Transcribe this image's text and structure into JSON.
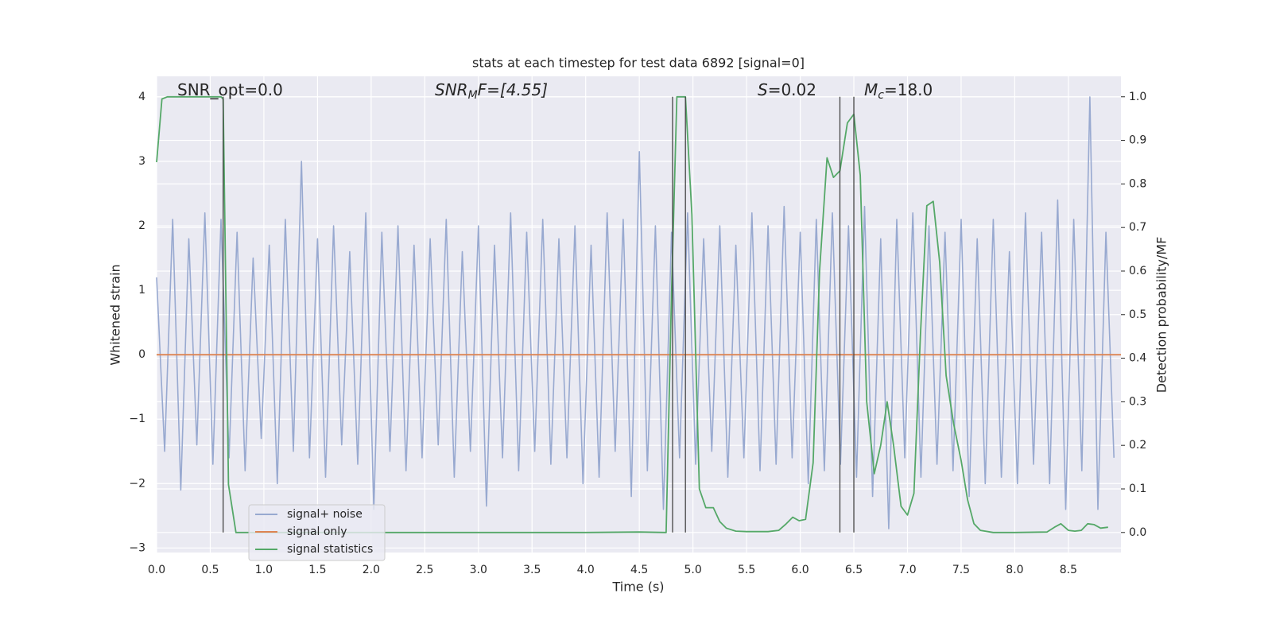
{
  "chart_data": {
    "type": "line",
    "title": "stats at each timestep for test data 6892 [signal=0]",
    "xlabel": "Time (s)",
    "ylabel": "Whitened strain",
    "y2label": "Detection probability/MF",
    "xlim": [
      0,
      8.99
    ],
    "ylim": [
      -3.07,
      4.32
    ],
    "y2lim": [
      -0.046,
      1.047
    ],
    "grid": true,
    "legend": "lower left",
    "xticks": [
      {
        "value": 0,
        "label": "0.0"
      },
      {
        "value": 0.5,
        "label": "0.5"
      },
      {
        "value": 1,
        "label": "1.0"
      },
      {
        "value": 1.5,
        "label": "1.5"
      },
      {
        "value": 2,
        "label": "2.0"
      },
      {
        "value": 2.5,
        "label": "2.5"
      },
      {
        "value": 3,
        "label": "3.0"
      },
      {
        "value": 3.5,
        "label": "3.5"
      },
      {
        "value": 4,
        "label": "4.0"
      },
      {
        "value": 4.5,
        "label": "4.5"
      },
      {
        "value": 5,
        "label": "5.0"
      },
      {
        "value": 5.5,
        "label": "5.5"
      },
      {
        "value": 6,
        "label": "6.0"
      },
      {
        "value": 6.5,
        "label": "6.5"
      },
      {
        "value": 7,
        "label": "7.0"
      },
      {
        "value": 7.5,
        "label": "7.5"
      },
      {
        "value": 8,
        "label": "8.0"
      },
      {
        "value": 8.5,
        "label": "8.5"
      }
    ],
    "yticks": [
      {
        "value": -3,
        "label": "−3"
      },
      {
        "value": -2,
        "label": "−2"
      },
      {
        "value": -1,
        "label": "−1"
      },
      0,
      1,
      2,
      3,
      4
    ],
    "y2ticks": [
      {
        "value": 0,
        "label": "0.0"
      },
      {
        "value": 0.1,
        "label": "0.1"
      },
      {
        "value": 0.2,
        "label": "0.2"
      },
      {
        "value": 0.3,
        "label": "0.3"
      },
      {
        "value": 0.4,
        "label": "0.4"
      },
      {
        "value": 0.5,
        "label": "0.5"
      },
      {
        "value": 0.6,
        "label": "0.6"
      },
      {
        "value": 0.7,
        "label": "0.7"
      },
      {
        "value": 0.8,
        "label": "0.8"
      },
      {
        "value": 0.9,
        "label": "0.9"
      },
      {
        "value": 1,
        "label": "1.0"
      }
    ],
    "annotations": [
      {
        "main": "SNR_opt=0.0"
      },
      {
        "main": "SNR",
        "sub": "M",
        "tail": "F=[4.55]"
      },
      {
        "main": "S",
        "tail": "=0.02"
      },
      {
        "main": "M",
        "sub": "c",
        "tail": "=18.0"
      }
    ],
    "vlines": [
      0.62,
      4.81,
      4.93,
      6.37,
      6.5
    ],
    "vlines_y2range": [
      0,
      1
    ],
    "vline_color": "#444444",
    "series": [
      {
        "name": "signal+ noise",
        "color": "#98a9d0",
        "x": [
          0,
          0.075,
          0.15,
          0.225,
          0.3,
          0.375,
          0.45,
          0.525,
          0.6,
          0.675,
          0.75,
          0.825,
          0.9,
          0.975,
          1.05,
          1.125,
          1.2,
          1.275,
          1.35,
          1.425,
          1.5,
          1.575,
          1.65,
          1.725,
          1.8,
          1.875,
          1.95,
          2.025,
          2.1,
          2.175,
          2.25,
          2.325,
          2.4,
          2.475,
          2.55,
          2.625,
          2.7,
          2.775,
          2.85,
          2.925,
          3.0,
          3.075,
          3.15,
          3.225,
          3.3,
          3.375,
          3.45,
          3.525,
          3.6,
          3.675,
          3.75,
          3.825,
          3.9,
          3.975,
          4.05,
          4.125,
          4.2,
          4.275,
          4.35,
          4.425,
          4.5,
          4.575,
          4.65,
          4.725,
          4.8,
          4.875,
          4.95,
          5.025,
          5.1,
          5.175,
          5.25,
          5.325,
          5.4,
          5.475,
          5.55,
          5.625,
          5.7,
          5.775,
          5.85,
          5.925,
          6.0,
          6.075,
          6.15,
          6.225,
          6.3,
          6.375,
          6.45,
          6.525,
          6.6,
          6.675,
          6.75,
          6.825,
          6.9,
          6.975,
          7.05,
          7.125,
          7.2,
          7.275,
          7.35,
          7.425,
          7.5,
          7.575,
          7.65,
          7.725,
          7.8,
          7.875,
          7.95,
          8.025,
          8.1,
          8.175,
          8.25,
          8.325,
          8.4,
          8.475,
          8.55,
          8.625,
          8.7,
          8.775,
          8.85,
          8.925
        ],
        "values": [
          1.2,
          -1.5,
          2.1,
          -2.1,
          1.8,
          -1.4,
          2.2,
          -1.7,
          2.1,
          -1.6,
          1.9,
          -1.8,
          1.5,
          -1.3,
          1.7,
          -2.0,
          2.1,
          -1.5,
          3.0,
          -1.6,
          1.8,
          -1.9,
          2.0,
          -1.4,
          1.6,
          -1.7,
          2.2,
          -2.4,
          1.9,
          -1.5,
          2.0,
          -1.8,
          1.7,
          -1.6,
          1.8,
          -1.4,
          2.1,
          -1.9,
          1.6,
          -1.5,
          2.0,
          -2.35,
          1.7,
          -1.6,
          2.2,
          -1.8,
          1.9,
          -1.5,
          2.1,
          -1.7,
          1.8,
          -1.6,
          2.0,
          -2.0,
          1.7,
          -1.9,
          2.2,
          -1.5,
          2.1,
          -2.2,
          3.15,
          -1.8,
          2.0,
          -2.4,
          1.9,
          -1.6,
          2.2,
          -1.7,
          1.8,
          -1.5,
          2.0,
          -1.9,
          1.7,
          -1.6,
          2.2,
          -1.8,
          2.0,
          -1.7,
          2.3,
          -1.6,
          1.9,
          -2.0,
          2.1,
          -1.8,
          2.2,
          -1.7,
          2.0,
          -1.9,
          2.3,
          -2.2,
          1.8,
          -2.7,
          2.1,
          -1.6,
          2.2,
          -1.9,
          2.0,
          -1.7,
          1.9,
          -1.8,
          2.1,
          -2.2,
          1.8,
          -2.0,
          2.1,
          -1.9,
          1.6,
          -2.0,
          2.2,
          -1.7,
          1.9,
          -2.0,
          2.4,
          -2.4,
          2.1,
          -1.8,
          4.0,
          -2.4,
          1.9,
          -1.6
        ]
      },
      {
        "name": "signal only",
        "color": "#dd8452",
        "x": [
          0,
          8.99
        ],
        "values": [
          0,
          0
        ]
      },
      {
        "name": "signal statistics",
        "color": "#55a868",
        "axis": "y2",
        "x": [
          0,
          0.05,
          0.1,
          0.2,
          0.3,
          0.4,
          0.5,
          0.6,
          0.62,
          0.67,
          0.74,
          1.0,
          2.0,
          3.0,
          4.0,
          4.5,
          4.75,
          4.8,
          4.85,
          4.9,
          4.93,
          4.99,
          5.06,
          5.12,
          5.19,
          5.25,
          5.31,
          5.4,
          5.5,
          5.7,
          5.8,
          5.87,
          5.93,
          5.99,
          6.05,
          6.12,
          6.18,
          6.25,
          6.31,
          6.37,
          6.44,
          6.5,
          6.56,
          6.62,
          6.69,
          6.75,
          6.81,
          6.87,
          6.94,
          7.0,
          7.06,
          7.12,
          7.18,
          7.24,
          7.3,
          7.36,
          7.43,
          7.5,
          7.56,
          7.62,
          7.68,
          7.8,
          8.0,
          8.3,
          8.37,
          8.43,
          8.5,
          8.56,
          8.62,
          8.68,
          8.74,
          8.8,
          8.87
        ],
        "values": [
          0.85,
          0.995,
          1.0,
          1.0,
          1.0,
          1.0,
          1.0,
          1.0,
          0.995,
          0.11,
          0.0,
          0.0,
          0.0,
          0.0,
          0.0,
          0.001,
          0.0,
          0.55,
          1.0,
          1.0,
          1.0,
          0.73,
          0.1,
          0.057,
          0.057,
          0.025,
          0.01,
          0.003,
          0.002,
          0.002,
          0.005,
          0.02,
          0.035,
          0.027,
          0.03,
          0.16,
          0.6,
          0.86,
          0.815,
          0.83,
          0.94,
          0.96,
          0.82,
          0.3,
          0.135,
          0.2,
          0.3,
          0.2,
          0.06,
          0.04,
          0.09,
          0.45,
          0.75,
          0.76,
          0.62,
          0.36,
          0.25,
          0.165,
          0.075,
          0.02,
          0.005,
          0.0,
          0.0,
          0.001,
          0.012,
          0.02,
          0.005,
          0.003,
          0.005,
          0.02,
          0.018,
          0.01,
          0.012
        ]
      }
    ]
  }
}
